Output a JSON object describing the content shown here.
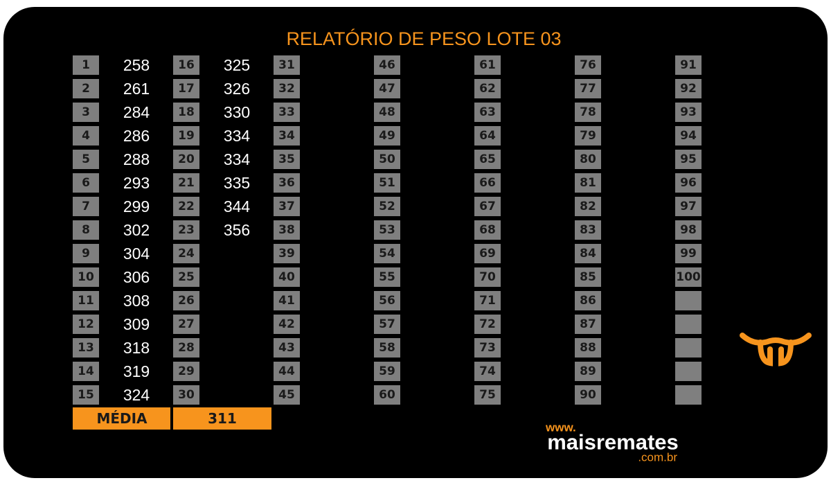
{
  "header": {
    "title": "RELATÓRIO DE PESO LOTE 03"
  },
  "table": {
    "columns": [
      {
        "numbers": [
          1,
          2,
          3,
          4,
          5,
          6,
          7,
          8,
          9,
          10,
          11,
          12,
          13,
          14,
          15
        ],
        "weights": [
          258,
          261,
          284,
          286,
          288,
          293,
          299,
          302,
          304,
          306,
          308,
          309,
          318,
          319,
          324
        ]
      },
      {
        "numbers": [
          16,
          17,
          18,
          19,
          20,
          21,
          22,
          23,
          24,
          25,
          26,
          27,
          28,
          29,
          30
        ],
        "weights": [
          325,
          326,
          330,
          334,
          334,
          335,
          344,
          356,
          null,
          null,
          null,
          null,
          null,
          null,
          null
        ]
      },
      {
        "numbers": [
          31,
          32,
          33,
          34,
          35,
          36,
          37,
          38,
          39,
          40,
          41,
          42,
          43,
          44,
          45
        ],
        "weights": []
      },
      {
        "numbers": [
          46,
          47,
          48,
          49,
          50,
          51,
          52,
          53,
          54,
          55,
          56,
          57,
          58,
          59,
          60
        ],
        "weights": []
      },
      {
        "numbers": [
          61,
          62,
          63,
          64,
          65,
          66,
          67,
          68,
          69,
          70,
          71,
          72,
          73,
          74,
          75
        ],
        "weights": []
      },
      {
        "numbers": [
          76,
          77,
          78,
          79,
          80,
          81,
          82,
          83,
          84,
          85,
          86,
          87,
          88,
          89,
          90
        ],
        "weights": []
      },
      {
        "numbers": [
          91,
          92,
          93,
          94,
          95,
          96,
          97,
          98,
          99,
          100,
          null,
          null,
          null,
          null,
          null
        ],
        "weights": []
      }
    ],
    "average": {
      "label": "MÉDIA",
      "value": 311
    }
  },
  "logo": {
    "prefix": "www.",
    "name": "maisremates",
    "suffix": ".com.br"
  }
}
